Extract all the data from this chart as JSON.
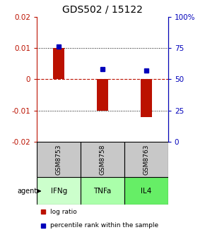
{
  "title": "GDS502 / 15122",
  "samples": [
    "GSM8753",
    "GSM8758",
    "GSM8763"
  ],
  "agents": [
    "IFNg",
    "TNFa",
    "IL4"
  ],
  "log_ratios": [
    0.01,
    -0.01,
    -0.012
  ],
  "percentile_ranks": [
    76,
    58,
    57
  ],
  "ylim_left": [
    -0.02,
    0.02
  ],
  "ylim_right": [
    0,
    100
  ],
  "yticks_left": [
    -0.02,
    -0.01,
    0,
    0.01,
    0.02
  ],
  "yticks_right": [
    0,
    25,
    50,
    75,
    100
  ],
  "bar_color": "#bb1100",
  "marker_color": "#0000bb",
  "grid_dotted": [
    -0.01,
    0.01
  ],
  "grid_dashed_zero": 0,
  "sample_bg": "#c8c8c8",
  "agent_bg": [
    "#ccffcc",
    "#aaffaa",
    "#66ee66"
  ],
  "title_fontsize": 10,
  "tick_fontsize": 7.5,
  "bar_width": 0.25,
  "xlim": [
    -0.5,
    2.5
  ]
}
